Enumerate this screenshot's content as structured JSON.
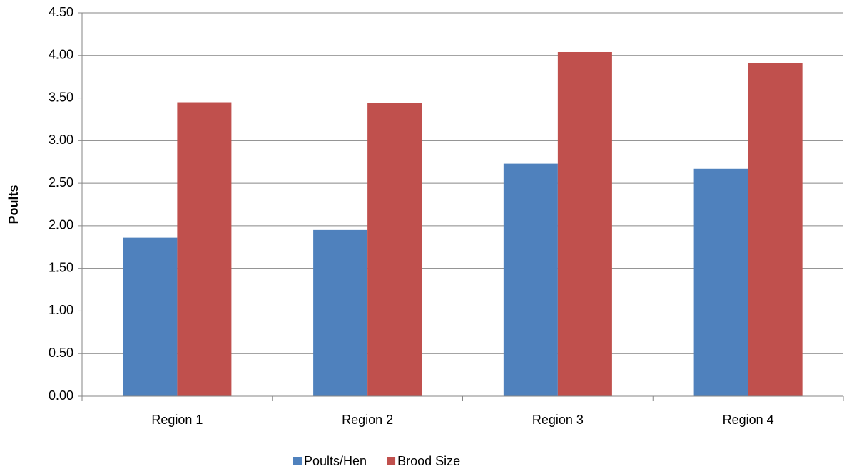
{
  "chart_data": {
    "type": "bar",
    "y_label": "Poults",
    "categories": [
      "Region 1",
      "Region 2",
      "Region 3",
      "Region 4"
    ],
    "series": [
      {
        "name": "Poults/Hen",
        "color": "#4f81bd",
        "values": [
          1.86,
          1.95,
          2.73,
          2.67
        ]
      },
      {
        "name": "Brood Size",
        "color": "#c0504d",
        "values": [
          3.45,
          3.44,
          4.04,
          3.91
        ]
      }
    ],
    "ylim": [
      0,
      4.5
    ],
    "yticks": [
      {
        "value": 0,
        "label": "0.00"
      },
      {
        "value": 0.5,
        "label": "0.50"
      },
      {
        "value": 1,
        "label": "1.00"
      },
      {
        "value": 1.5,
        "label": "1.50"
      },
      {
        "value": 2,
        "label": "2.00"
      },
      {
        "value": 2.5,
        "label": "2.50"
      },
      {
        "value": 3,
        "label": "3.00"
      },
      {
        "value": 3.5,
        "label": "3.50"
      },
      {
        "value": 4,
        "label": "4.00"
      },
      {
        "value": 4.5,
        "label": "4.50"
      }
    ],
    "grid": true,
    "legend": "bottom"
  }
}
